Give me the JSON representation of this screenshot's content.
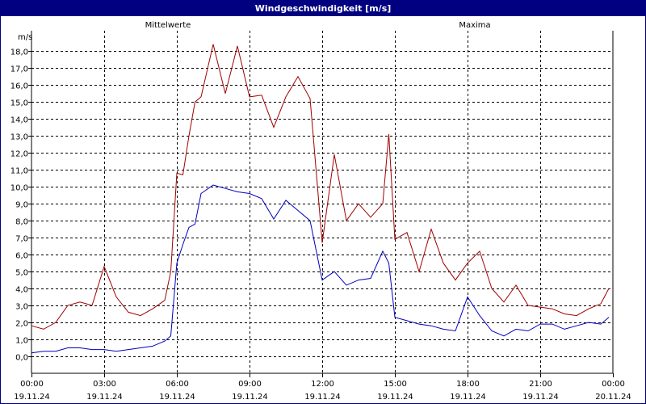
{
  "window": {
    "title": "Windgeschwindigkeit [m/s]"
  },
  "chart_data": {
    "type": "line",
    "title": "Windgeschwindigkeit [m/s]",
    "ylabel": "m/s",
    "xlabel": "",
    "ylim": [
      -1,
      19.2
    ],
    "yticks": [
      0,
      1,
      2,
      3,
      4,
      5,
      6,
      7,
      8,
      9,
      10,
      11,
      12,
      13,
      14,
      15,
      16,
      17,
      18
    ],
    "ytick_labels": [
      "0,0",
      "1,0",
      "2,0",
      "3,0",
      "4,0",
      "5,0",
      "6,0",
      "7,0",
      "8,0",
      "9,0",
      "10,0",
      "11,0",
      "12,0",
      "13,0",
      "14,0",
      "15,0",
      "16,0",
      "17,0",
      "18,0"
    ],
    "xlim": [
      "2024-11-19 00:00",
      "2024-11-20 00:00"
    ],
    "xticks": [
      "2024-11-19 00:00",
      "2024-11-19 03:00",
      "2024-11-19 06:00",
      "2024-11-19 09:00",
      "2024-11-19 12:00",
      "2024-11-19 15:00",
      "2024-11-19 18:00",
      "2024-11-19 21:00",
      "2024-11-20 00:00"
    ],
    "xtick_labels": [
      {
        "time": "00:00",
        "date": "19.11.24"
      },
      {
        "time": "03:00",
        "date": "19.11.24"
      },
      {
        "time": "06:00",
        "date": "19.11.24"
      },
      {
        "time": "09:00",
        "date": "19.11.24"
      },
      {
        "time": "12:00",
        "date": "19.11.24"
      },
      {
        "time": "15:00",
        "date": "19.11.24"
      },
      {
        "time": "18:00",
        "date": "19.11.24"
      },
      {
        "time": "21:00",
        "date": "19.11.24"
      },
      {
        "time": "00:00",
        "date": "20.11.24"
      }
    ],
    "grid": true,
    "legend": "top",
    "x": [
      "2024-11-19 00:00",
      "2024-11-19 00:30",
      "2024-11-19 01:00",
      "2024-11-19 01:30",
      "2024-11-19 02:00",
      "2024-11-19 02:30",
      "2024-11-19 03:00",
      "2024-11-19 03:30",
      "2024-11-19 04:00",
      "2024-11-19 04:30",
      "2024-11-19 05:00",
      "2024-11-19 05:30",
      "2024-11-19 05:45",
      "2024-11-19 06:00",
      "2024-11-19 06:15",
      "2024-11-19 06:30",
      "2024-11-19 06:45",
      "2024-11-19 07:00",
      "2024-11-19 07:30",
      "2024-11-19 08:00",
      "2024-11-19 08:30",
      "2024-11-19 09:00",
      "2024-11-19 09:30",
      "2024-11-19 10:00",
      "2024-11-19 10:30",
      "2024-11-19 11:00",
      "2024-11-19 11:30",
      "2024-11-19 12:00",
      "2024-11-19 12:30",
      "2024-11-19 13:00",
      "2024-11-19 13:30",
      "2024-11-19 14:00",
      "2024-11-19 14:30",
      "2024-11-19 14:45",
      "2024-11-19 15:00",
      "2024-11-19 15:30",
      "2024-11-19 16:00",
      "2024-11-19 16:30",
      "2024-11-19 17:00",
      "2024-11-19 17:30",
      "2024-11-19 18:00",
      "2024-11-19 18:30",
      "2024-11-19 19:00",
      "2024-11-19 19:30",
      "2024-11-19 20:00",
      "2024-11-19 20:30",
      "2024-11-19 21:00",
      "2024-11-19 21:30",
      "2024-11-19 22:00",
      "2024-11-19 22:30",
      "2024-11-19 23:00",
      "2024-11-19 23:30",
      "2024-11-19 23:50"
    ],
    "series": [
      {
        "name": "Mittelwerte",
        "color": "#0000c0",
        "values": [
          0.2,
          0.3,
          0.3,
          0.5,
          0.5,
          0.4,
          0.4,
          0.3,
          0.4,
          0.5,
          0.6,
          0.9,
          1.2,
          5.5,
          6.6,
          7.6,
          7.8,
          9.6,
          10.1,
          9.9,
          9.7,
          9.6,
          9.3,
          8.1,
          9.2,
          8.6,
          8.0,
          4.5,
          5.0,
          4.2,
          4.5,
          4.6,
          6.2,
          5.5,
          2.3,
          2.1,
          1.9,
          1.8,
          1.6,
          1.5,
          3.5,
          2.4,
          1.5,
          1.2,
          1.6,
          1.5,
          1.9,
          1.9,
          1.6,
          1.8,
          2.0,
          1.9,
          2.3
        ]
      },
      {
        "name": "Maxima",
        "color": "#a00000",
        "values": [
          1.8,
          1.6,
          2.0,
          3.0,
          3.2,
          3.0,
          5.3,
          3.5,
          2.6,
          2.4,
          2.8,
          3.3,
          5.0,
          10.8,
          10.7,
          13.0,
          15.0,
          15.3,
          18.4,
          15.5,
          18.3,
          15.3,
          15.4,
          13.5,
          15.3,
          16.5,
          15.2,
          6.7,
          11.9,
          8.0,
          9.0,
          8.2,
          9.0,
          13.1,
          6.9,
          7.3,
          5.0,
          7.5,
          5.5,
          4.5,
          5.5,
          6.2,
          4.0,
          3.2,
          4.2,
          3.0,
          2.9,
          2.8,
          2.5,
          2.4,
          2.8,
          3.1,
          4.0
        ]
      }
    ]
  }
}
